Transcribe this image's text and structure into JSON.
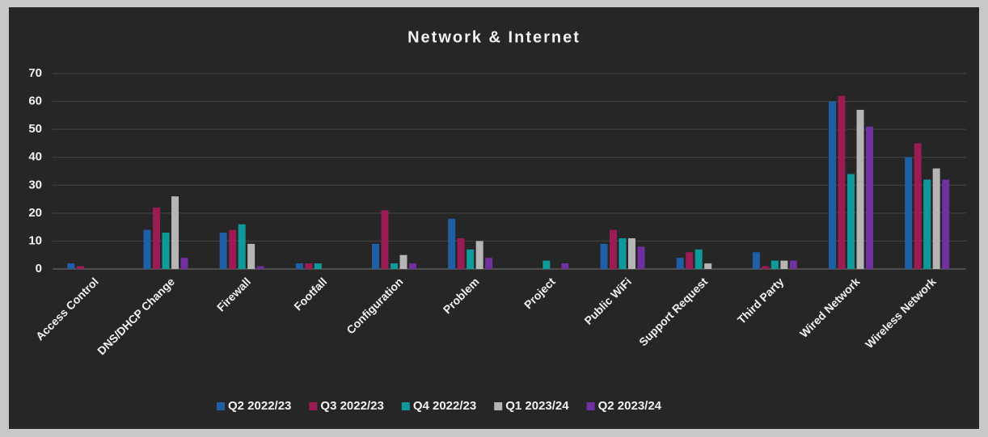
{
  "chart_data": {
    "type": "bar",
    "title": "Network & Internet",
    "categories": [
      "Access Control",
      "DNS/DHCP Change",
      "Firewall",
      "Footfall",
      "Configuration",
      "Problem",
      "Project",
      "Public WiFi",
      "Support Request",
      "Third Party",
      "Wired Network",
      "Wireless Network"
    ],
    "series": [
      {
        "name": "Q2 2022/23",
        "color": "#1f5fa6",
        "values": [
          2,
          14,
          13,
          2,
          9,
          18,
          0,
          9,
          4,
          6,
          60,
          40
        ]
      },
      {
        "name": "Q3 2022/23",
        "color": "#9b1b55",
        "values": [
          1,
          22,
          14,
          2,
          21,
          11,
          0,
          14,
          6,
          1,
          62,
          45
        ]
      },
      {
        "name": "Q4 2022/23",
        "color": "#0e9a9a",
        "values": [
          0,
          13,
          16,
          2,
          2,
          7,
          3,
          11,
          7,
          3,
          34,
          32
        ]
      },
      {
        "name": "Q1 2023/24",
        "color": "#b5b5b5",
        "values": [
          0,
          26,
          9,
          0,
          5,
          10,
          0,
          11,
          2,
          3,
          57,
          36
        ]
      },
      {
        "name": "Q2 2023/24",
        "color": "#7030a0",
        "values": [
          0,
          4,
          1,
          0,
          2,
          4,
          2,
          8,
          0,
          3,
          51,
          32
        ]
      }
    ],
    "ylim": [
      0,
      70
    ],
    "yticks": [
      0,
      10,
      20,
      30,
      40,
      50,
      60,
      70
    ],
    "grid": true,
    "legend": "bottom"
  }
}
